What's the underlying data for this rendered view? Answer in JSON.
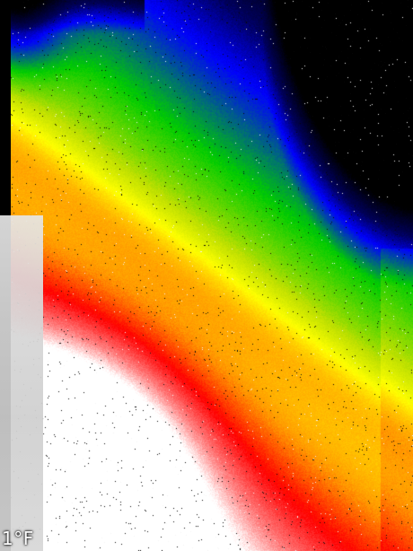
{
  "thermal_image": {
    "unit_label": "1°F",
    "palette": [
      "#ffffff",
      "#ff0000",
      "#ff8c00",
      "#ffff00",
      "#00ff00",
      "#0000ff",
      "#000000"
    ]
  }
}
